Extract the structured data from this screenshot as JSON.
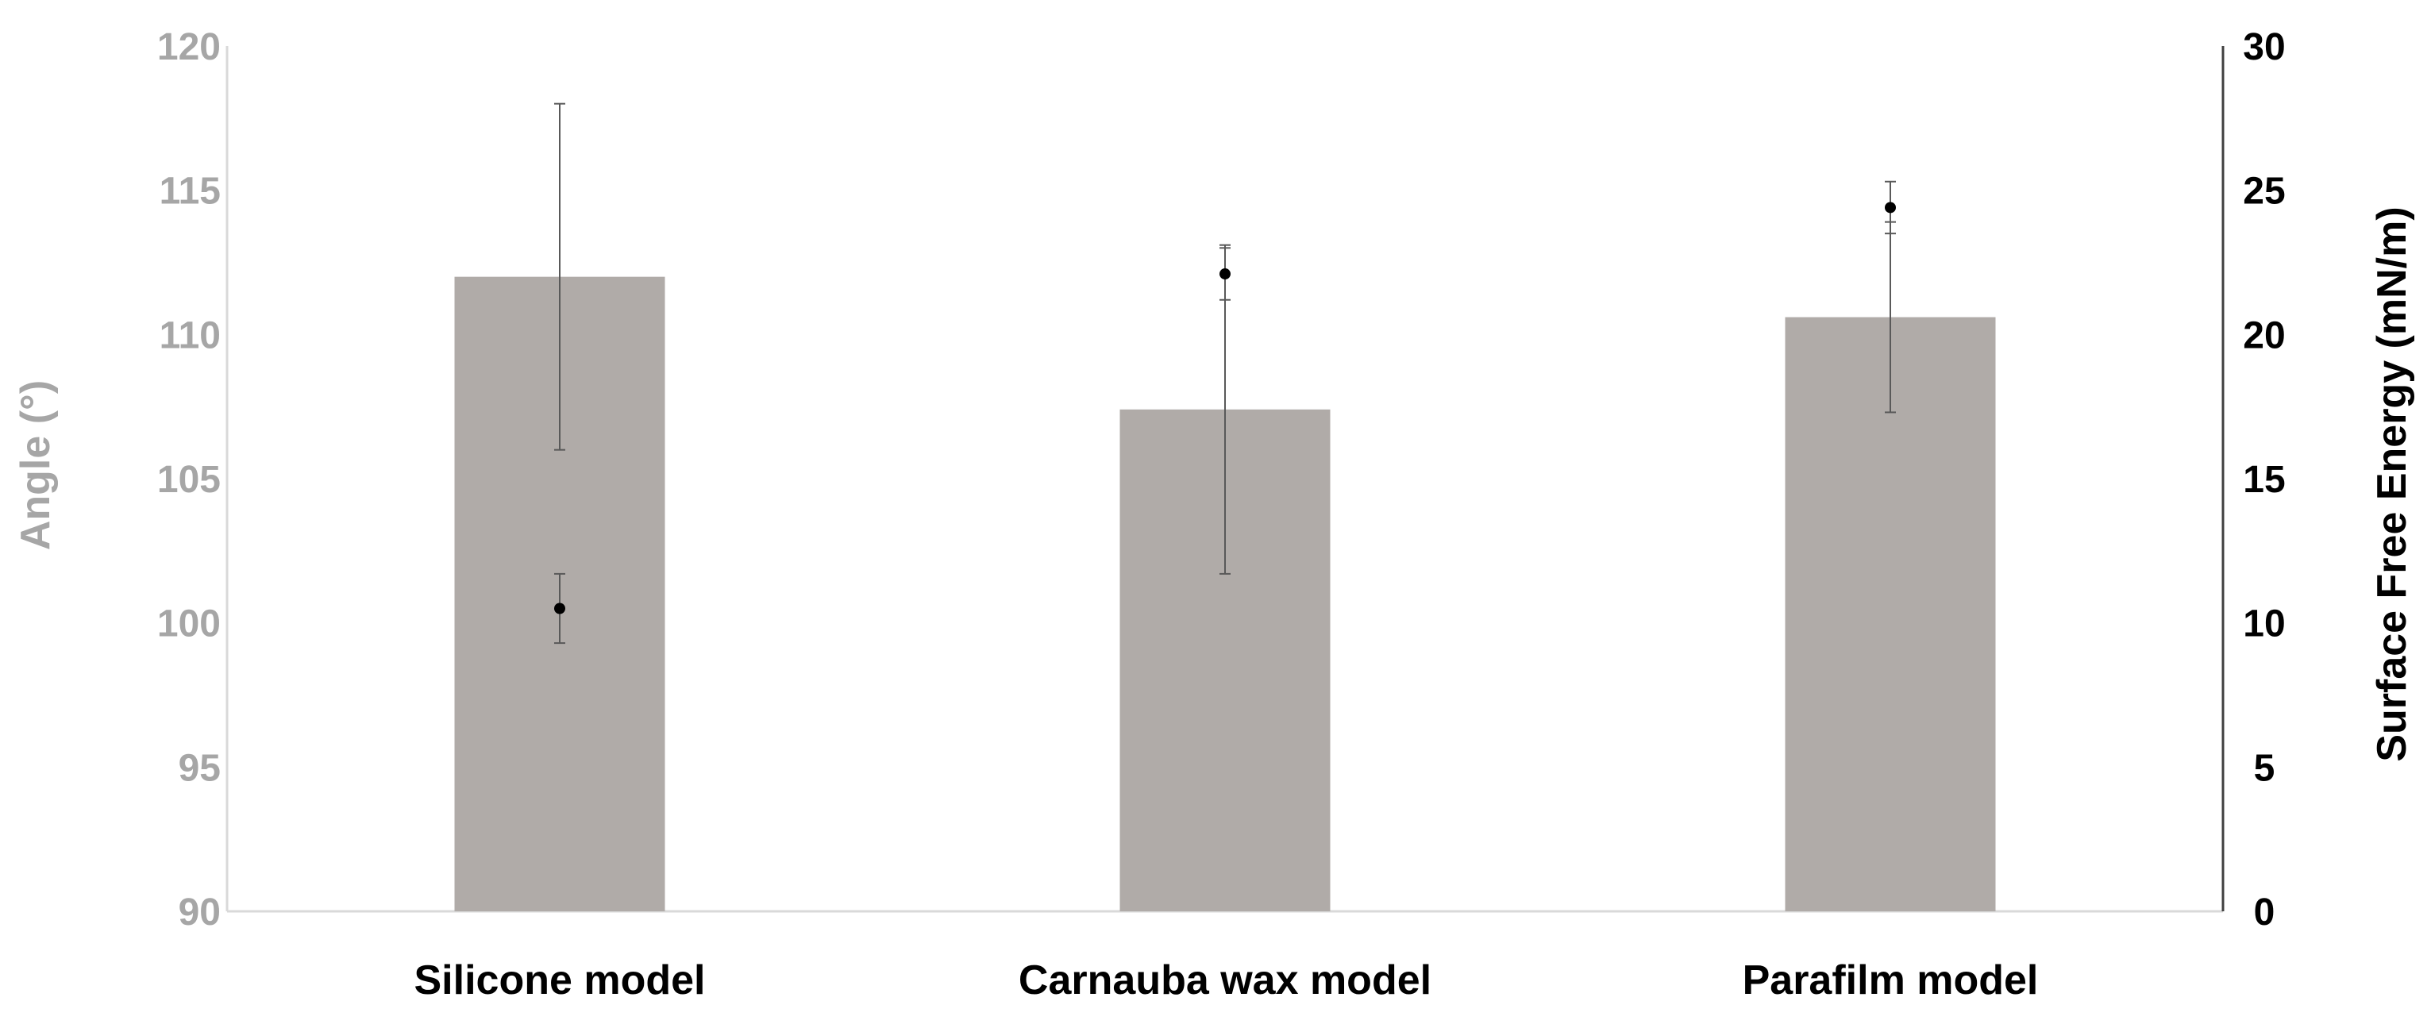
{
  "chart_data": {
    "type": "bar",
    "categories": [
      "Silicone model",
      "Carnauba wax model",
      "Parafilm model"
    ],
    "series": [
      {
        "axis": "left",
        "kind": "bar",
        "values": [
          112.0,
          107.4,
          110.6
        ],
        "error": [
          6.0,
          5.7,
          3.3
        ],
        "color": "#b0aba8"
      },
      {
        "axis": "right",
        "kind": "point",
        "values": [
          10.5,
          22.1,
          24.4
        ],
        "error": [
          1.2,
          0.9,
          0.9
        ],
        "color": "#000000"
      }
    ],
    "ylabel": "Angle (°)",
    "y2label": "Surface Free Energy (mN/m)",
    "ylim": [
      90,
      120
    ],
    "y2lim": [
      0,
      30
    ],
    "yticks": [
      "90",
      "95",
      "100",
      "105",
      "110",
      "115",
      "120"
    ],
    "y2ticks": [
      "0",
      "5",
      "10",
      "15",
      "20",
      "25",
      "30"
    ],
    "grid": false,
    "colors": {
      "left_axis_text": "#a6a6a6",
      "right_axis_text": "#000000",
      "axis_line": "#d9d9d9",
      "right_axis_line": "#404040",
      "error_bar": "#595959"
    }
  }
}
